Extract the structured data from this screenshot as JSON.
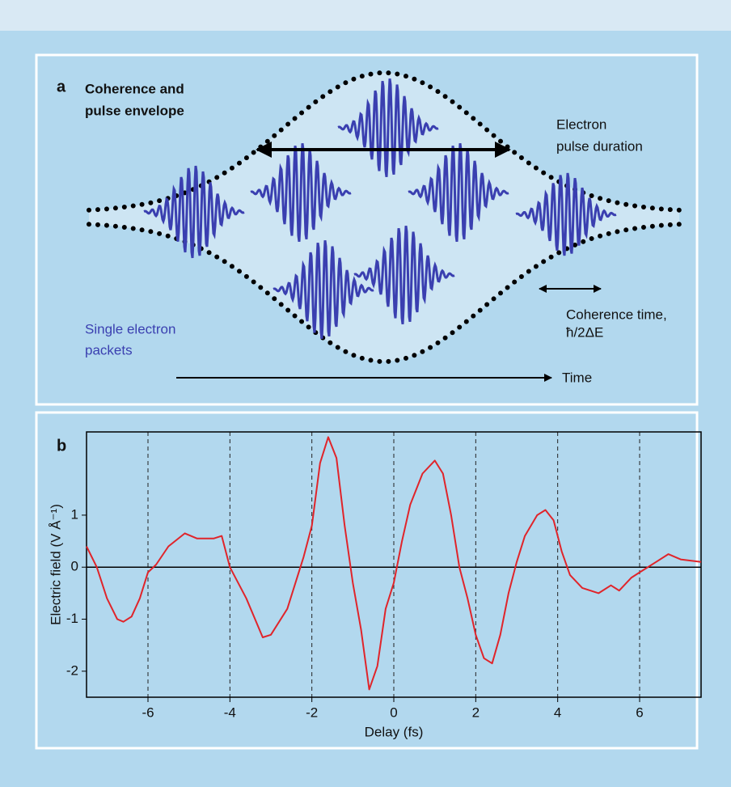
{
  "panel_a": {
    "label": "a",
    "title_lines": [
      "Coherence and",
      "pulse envelope"
    ],
    "duration_lines": [
      "Electron",
      "pulse duration"
    ],
    "coherence_lines": [
      "Coherence time,",
      "ħ/2ΔE"
    ],
    "packets_lines": [
      "Single electron",
      "packets"
    ],
    "time_label": "Time"
  },
  "chart_data": {
    "type": "line",
    "panel_label": "b",
    "x_label": "Delay (fs)",
    "y_label": "Electric field (V Å⁻¹)",
    "xlim": [
      -7.5,
      7.5
    ],
    "ylim": [
      -2.5,
      2.6
    ],
    "xticks": [
      -6,
      -4,
      -2,
      0,
      2,
      4,
      6
    ],
    "yticks": [
      -2,
      -1,
      0,
      1
    ],
    "grid": true,
    "series": [
      {
        "color": "#e0242a",
        "x": [
          -7.5,
          -7.25,
          -7.0,
          -6.75,
          -6.6,
          -6.4,
          -6.2,
          -6.0,
          -5.8,
          -5.5,
          -5.1,
          -4.8,
          -4.4,
          -4.2,
          -4.0,
          -3.6,
          -3.2,
          -3.0,
          -2.6,
          -2.2,
          -2.0,
          -1.8,
          -1.6,
          -1.4,
          -1.2,
          -1.0,
          -0.8,
          -0.6,
          -0.4,
          -0.2,
          0.0,
          0.2,
          0.4,
          0.7,
          1.0,
          1.2,
          1.4,
          1.6,
          1.8,
          2.0,
          2.2,
          2.4,
          2.6,
          2.8,
          3.0,
          3.2,
          3.5,
          3.7,
          3.9,
          4.1,
          4.3,
          4.6,
          5.0,
          5.3,
          5.5,
          5.8,
          6.0,
          6.4,
          6.7,
          7.0,
          7.5
        ],
        "values": [
          0.4,
          0.0,
          -0.6,
          -1.0,
          -1.05,
          -0.95,
          -0.6,
          -0.1,
          0.05,
          0.4,
          0.65,
          0.55,
          0.55,
          0.6,
          0.0,
          -0.6,
          -1.35,
          -1.3,
          -0.8,
          0.2,
          0.8,
          2.0,
          2.5,
          2.1,
          0.8,
          -0.3,
          -1.2,
          -2.35,
          -1.9,
          -0.8,
          -0.3,
          0.5,
          1.2,
          1.8,
          2.05,
          1.8,
          1.0,
          0.0,
          -0.6,
          -1.3,
          -1.75,
          -1.85,
          -1.3,
          -0.5,
          0.1,
          0.6,
          1.0,
          1.1,
          0.9,
          0.3,
          -0.15,
          -0.4,
          -0.5,
          -0.35,
          -0.45,
          -0.2,
          -0.1,
          0.1,
          0.25,
          0.15,
          0.1
        ]
      }
    ]
  }
}
